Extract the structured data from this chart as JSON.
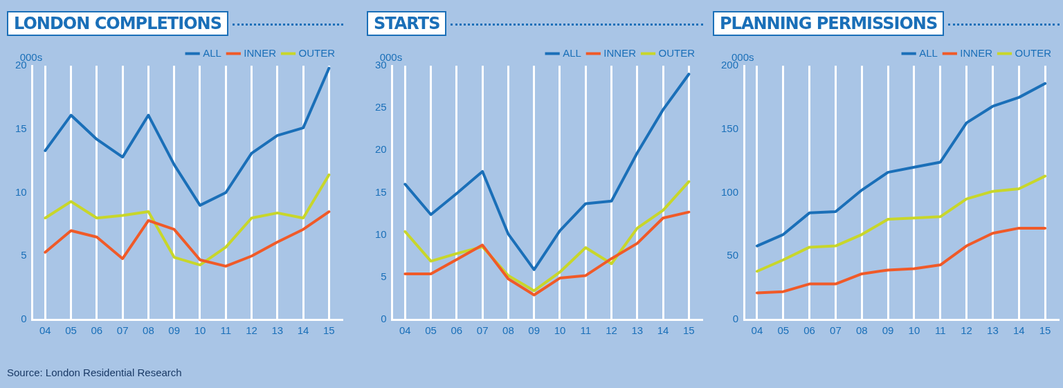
{
  "chart_data": [
    {
      "type": "line",
      "title": "LONDON COMPLETIONS",
      "ylabel": "000s",
      "categories": [
        "04",
        "05",
        "06",
        "07",
        "08",
        "09",
        "10",
        "11",
        "12",
        "13",
        "14",
        "15"
      ],
      "series": [
        {
          "name": "ALL",
          "color": "#1a6fb8",
          "values": [
            13.3,
            16.1,
            14.2,
            12.8,
            16.1,
            12.2,
            9.0,
            10.0,
            13.1,
            14.5,
            15.1,
            19.8
          ]
        },
        {
          "name": "INNER",
          "color": "#f05a28",
          "values": [
            5.3,
            7.0,
            6.5,
            4.8,
            7.8,
            7.1,
            4.7,
            4.2,
            5.0,
            6.1,
            7.1,
            8.5
          ]
        },
        {
          "name": "OUTER",
          "color": "#c8d62a",
          "values": [
            8.0,
            9.3,
            8.0,
            8.2,
            8.5,
            4.9,
            4.3,
            5.7,
            8.0,
            8.4,
            8.0,
            11.4
          ]
        }
      ],
      "ylim": [
        0,
        20
      ],
      "yticks": [
        0,
        5,
        10,
        15,
        20
      ],
      "grid": "x",
      "legend": "top right",
      "marker": "none",
      "line_style": "solid",
      "annotations": [
        "Source: London Residential Research"
      ]
    },
    {
      "type": "line",
      "title": "STARTS",
      "ylabel": "000s",
      "categories": [
        "04",
        "05",
        "06",
        "07",
        "08",
        "09",
        "10",
        "11",
        "12",
        "13",
        "14",
        "15"
      ],
      "series": [
        {
          "name": "ALL",
          "color": "#1a6fb8",
          "values": [
            16.0,
            12.4,
            14.9,
            17.5,
            10.1,
            5.9,
            10.5,
            13.7,
            14.0,
            19.7,
            24.8,
            29.0
          ]
        },
        {
          "name": "INNER",
          "color": "#f05a28",
          "values": [
            5.4,
            5.4,
            7.1,
            8.8,
            4.8,
            2.9,
            4.9,
            5.2,
            7.2,
            9.0,
            12.0,
            12.7
          ]
        },
        {
          "name": "OUTER",
          "color": "#c8d62a",
          "values": [
            10.4,
            6.9,
            7.8,
            8.6,
            5.2,
            3.4,
            5.6,
            8.5,
            6.6,
            10.8,
            12.9,
            16.3
          ]
        }
      ],
      "ylim": [
        0,
        30
      ],
      "yticks": [
        0,
        5,
        10,
        15,
        20,
        25,
        30
      ],
      "grid": "x",
      "legend": "top right",
      "marker": "none",
      "line_style": "solid"
    },
    {
      "type": "line",
      "title": "PLANNING PERMISSIONS",
      "ylabel": "000s",
      "categories": [
        "04",
        "05",
        "06",
        "07",
        "08",
        "09",
        "10",
        "11",
        "12",
        "13",
        "14",
        "15"
      ],
      "series": [
        {
          "name": "ALL",
          "color": "#1a6fb8",
          "values": [
            58,
            67,
            84,
            85,
            102,
            116,
            120,
            124,
            155,
            168,
            175,
            186
          ]
        },
        {
          "name": "INNER",
          "color": "#f05a28",
          "values": [
            21,
            22,
            28,
            28,
            36,
            39,
            40,
            43,
            58,
            68,
            72,
            72
          ]
        },
        {
          "name": "OUTER",
          "color": "#c8d62a",
          "values": [
            38,
            47,
            57,
            58,
            67,
            79,
            80,
            81,
            95,
            101,
            103,
            113
          ]
        }
      ],
      "ylim": [
        0,
        200
      ],
      "yticks": [
        0,
        50,
        100,
        150,
        200
      ],
      "grid": "x",
      "legend": "top right",
      "marker": "none",
      "line_style": "solid"
    }
  ]
}
